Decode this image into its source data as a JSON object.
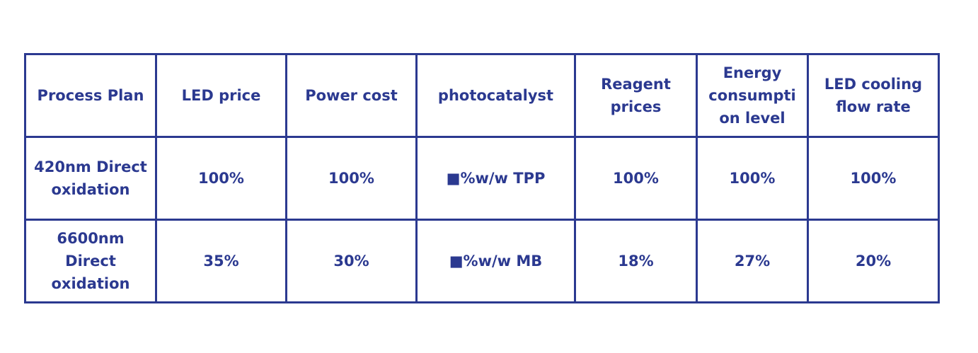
{
  "table": {
    "header": [
      "Process Plan",
      "LED price",
      "Power cost",
      "photocatalyst",
      "Reagent prices",
      "Energy consumption level",
      "LED cooling flow rate"
    ],
    "rows": [
      [
        "420nm Direct oxidation",
        "100%",
        "100%",
        "■%w/w TPP",
        "100%",
        "100%",
        "100%"
      ],
      [
        "6600nm Direct oxidation",
        "35%",
        "30%",
        "■%w/w MB",
        "18%",
        "27%",
        "20%"
      ]
    ]
  }
}
